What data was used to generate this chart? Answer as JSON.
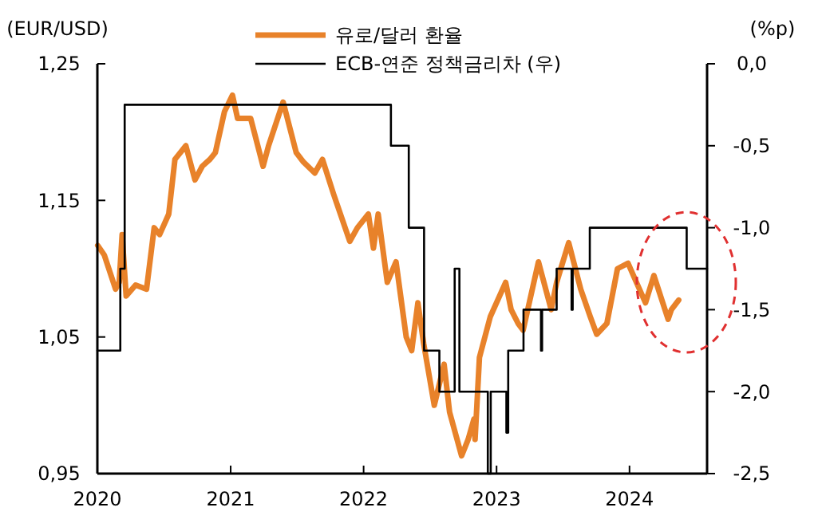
{
  "chart_data": {
    "type": "line",
    "ylabel": "(EUR/USD)",
    "y2label": "(%p)",
    "legend": "top",
    "grid": false,
    "xlim": [
      "2020-01-01",
      "2024-08-01"
    ],
    "xticks": [
      {
        "value": "2020-01-01",
        "label": "2020"
      },
      {
        "value": "2021-01-01",
        "label": "2021"
      },
      {
        "value": "2022-01-01",
        "label": "2022"
      },
      {
        "value": "2023-01-01",
        "label": "2023"
      },
      {
        "value": "2024-01-01",
        "label": "2024"
      }
    ],
    "ylim": [
      0.95,
      1.25
    ],
    "yticks": [
      {
        "value": 0.95,
        "label": "0,95"
      },
      {
        "value": 1.05,
        "label": "1,05"
      },
      {
        "value": 1.15,
        "label": "1,15"
      },
      {
        "value": 1.25,
        "label": "1,25"
      }
    ],
    "y2lim": [
      -2.5,
      0
    ],
    "y2ticks": [
      {
        "value": -2.5,
        "label": "-2,5"
      },
      {
        "value": -2,
        "label": "-2,0"
      },
      {
        "value": -1.5,
        "label": "-1,5"
      },
      {
        "value": -1,
        "label": "-1,0"
      },
      {
        "value": -0.5,
        "label": "-0,5"
      },
      {
        "value": 0,
        "label": "0,0"
      }
    ],
    "series": [
      {
        "name": "유로/달러 환율",
        "color": "#e8822a",
        "x": [
          "2020-01-02",
          "2020-01-20",
          "2020-02-20",
          "2020-03-01",
          "2020-03-09",
          "2020-03-20",
          "2020-04-15",
          "2020-05-15",
          "2020-06-05",
          "2020-06-20",
          "2020-07-15",
          "2020-08-01",
          "2020-08-31",
          "2020-09-25",
          "2020-10-15",
          "2020-11-05",
          "2020-11-20",
          "2020-12-15",
          "2021-01-06",
          "2021-01-20",
          "2021-02-25",
          "2021-03-31",
          "2021-04-15",
          "2021-05-25",
          "2021-06-30",
          "2021-07-20",
          "2021-08-20",
          "2021-09-10",
          "2021-10-10",
          "2021-11-24",
          "2021-12-15",
          "2022-01-14",
          "2022-01-28",
          "2022-02-10",
          "2022-03-07",
          "2022-03-31",
          "2022-04-28",
          "2022-05-13",
          "2022-05-30",
          "2022-06-15",
          "2022-07-14",
          "2022-08-10",
          "2022-08-25",
          "2022-09-27",
          "2022-10-15",
          "2022-10-31",
          "2022-11-03",
          "2022-11-15",
          "2022-12-15",
          "2023-01-26",
          "2023-02-10",
          "2023-03-01",
          "2023-03-15",
          "2023-04-26",
          "2023-05-31",
          "2023-06-15",
          "2023-07-18",
          "2023-08-20",
          "2023-09-15",
          "2023-10-03",
          "2023-10-31",
          "2023-11-29",
          "2023-12-28",
          "2024-01-20",
          "2024-02-14",
          "2024-03-08",
          "2024-04-16",
          "2024-04-25",
          "2024-05-15"
        ],
        "values": [
          1.117,
          1.11,
          1.085,
          1.09,
          1.125,
          1.08,
          1.088,
          1.085,
          1.13,
          1.125,
          1.14,
          1.18,
          1.19,
          1.165,
          1.175,
          1.18,
          1.185,
          1.215,
          1.227,
          1.21,
          1.21,
          1.175,
          1.19,
          1.222,
          1.185,
          1.178,
          1.17,
          1.18,
          1.155,
          1.12,
          1.13,
          1.14,
          1.115,
          1.14,
          1.09,
          1.105,
          1.05,
          1.04,
          1.075,
          1.045,
          1.0,
          1.03,
          0.995,
          0.963,
          0.975,
          0.99,
          0.975,
          1.035,
          1.065,
          1.09,
          1.07,
          1.06,
          1.055,
          1.105,
          1.07,
          1.09,
          1.119,
          1.085,
          1.065,
          1.052,
          1.06,
          1.1,
          1.104,
          1.09,
          1.075,
          1.095,
          1.063,
          1.07,
          1.077
        ]
      },
      {
        "name": "ECB-연준 정책금리차 (우)",
        "color": "#000000",
        "type": "step",
        "axis": "y2",
        "x": [
          "2020-01-01",
          "2020-03-04",
          "2020-03-16",
          "2022-03-17",
          "2022-05-05",
          "2022-06-16",
          "2022-07-28",
          "2022-09-08",
          "2022-09-21",
          "2022-12-08",
          "2022-12-16",
          "2023-01-28",
          "2023-02-02",
          "2023-03-16",
          "2023-05-03",
          "2023-05-06",
          "2023-06-15",
          "2023-07-26",
          "2023-07-29",
          "2023-09-14",
          "2024-06-06",
          "2024-08-01"
        ],
        "values": [
          -1.75,
          -1.25,
          -0.25,
          -0.5,
          -1.0,
          -1.75,
          -2.0,
          -1.25,
          -2.0,
          -2.5,
          -2.0,
          -2.25,
          -1.75,
          -1.5,
          -1.75,
          -1.5,
          -1.25,
          -1.5,
          -1.25,
          -1.0,
          -1.25,
          -1.25
        ]
      }
    ]
  }
}
